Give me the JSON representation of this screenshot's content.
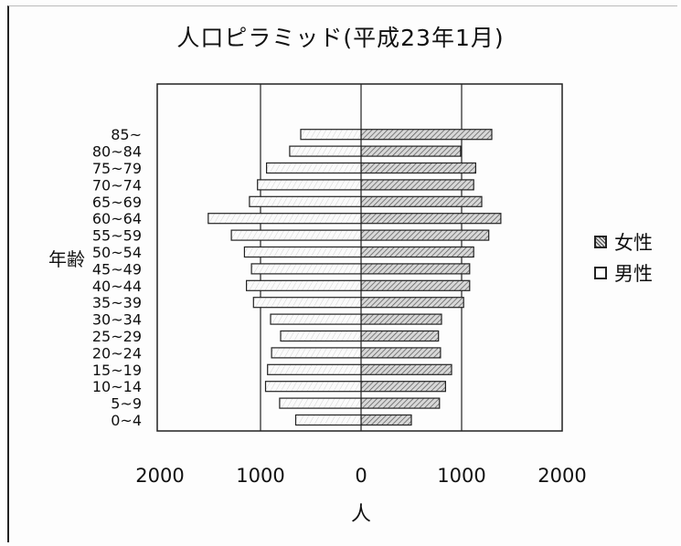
{
  "chart_data": {
    "type": "bar",
    "title": "人口ピラミッド(平成23年1月)",
    "ylabel": "年齢",
    "xlabel": "人",
    "xlim": [
      -2000,
      2000
    ],
    "x_ticks": [
      "2000",
      "1000",
      "0",
      "1000",
      "2000"
    ],
    "categories": [
      "0~4",
      "5~9",
      "10~14",
      "15~19",
      "20~24",
      "25~29",
      "30~34",
      "35~39",
      "40~44",
      "45~49",
      "50~54",
      "55~59",
      "60~64",
      "65~69",
      "70~74",
      "75~79",
      "80~84",
      "85~"
    ],
    "series": [
      {
        "name": "女性",
        "side": "right",
        "color": "#888888",
        "values": [
          500,
          780,
          840,
          900,
          790,
          770,
          800,
          1020,
          1080,
          1080,
          1120,
          1270,
          1390,
          1200,
          1120,
          1140,
          990,
          1300
        ]
      },
      {
        "name": "男性",
        "side": "left",
        "color": "#ffffff",
        "values": [
          650,
          810,
          950,
          930,
          890,
          800,
          900,
          1070,
          1140,
          1090,
          1160,
          1290,
          1520,
          1110,
          1030,
          940,
          710,
          600
        ]
      }
    ],
    "legend": [
      "女性",
      "男性"
    ],
    "legend_position": "right"
  }
}
